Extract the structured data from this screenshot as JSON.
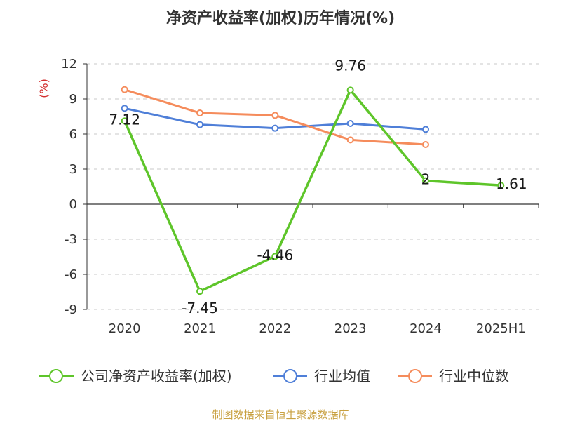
{
  "chart_data": {
    "type": "line",
    "title": "净资产收益率(加权)历年情况(%)",
    "ylabel": "(%)",
    "xlabel": "",
    "categories": [
      "2020",
      "2021",
      "2022",
      "2023",
      "2024",
      "2025H1"
    ],
    "ylim": [
      -9,
      12
    ],
    "yticks": [
      12,
      9,
      6,
      3,
      0,
      -3,
      -6,
      -9
    ],
    "grid": true,
    "legend_position": "bottom",
    "series": [
      {
        "name": "公司净资产收益率(加权)",
        "color": "#5ec52a",
        "values": [
          7.12,
          -7.45,
          -4.46,
          9.76,
          2,
          1.61
        ],
        "labels": [
          "7.12",
          "-7.45",
          "-4.46",
          "9.76",
          "2",
          "1.61"
        ]
      },
      {
        "name": "行业均值",
        "color": "#4f7fd8",
        "values": [
          8.2,
          6.8,
          6.5,
          6.9,
          6.4,
          null
        ]
      },
      {
        "name": "行业中位数",
        "color": "#f58c5c",
        "values": [
          9.8,
          7.8,
          7.6,
          5.5,
          5.1,
          null
        ]
      }
    ],
    "source": "制图数据来自恒生聚源数据库"
  }
}
